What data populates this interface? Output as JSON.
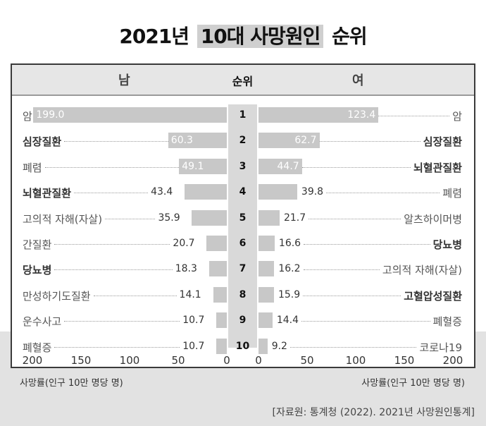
{
  "title": {
    "pre": "2021년",
    "highlight": "10대 사망원인",
    "post": "순위"
  },
  "header": {
    "male": "남",
    "rank": "순위",
    "female": "여"
  },
  "chart_data": {
    "type": "bar",
    "orientation": "horizontal-butterfly",
    "xlim": [
      0,
      200
    ],
    "ticks": [
      200,
      150,
      100,
      50,
      0
    ],
    "ticks_right": [
      0,
      50,
      100,
      150,
      200
    ],
    "axis_unit": "사망률(인구 10만 명당 명)",
    "ranks": [
      "1",
      "2",
      "3",
      "4",
      "5",
      "6",
      "7",
      "8",
      "9",
      "10"
    ],
    "male": [
      {
        "cause": "암",
        "value": 199.0,
        "value_label": "199.0",
        "bold": false
      },
      {
        "cause": "심장질환",
        "value": 60.3,
        "value_label": "60.3",
        "bold": true
      },
      {
        "cause": "폐렴",
        "value": 49.1,
        "value_label": "49.1",
        "bold": false
      },
      {
        "cause": "뇌혈관질환",
        "value": 43.4,
        "value_label": "43.4",
        "bold": true
      },
      {
        "cause": "고의적 자해(자살)",
        "value": 35.9,
        "value_label": "35.9",
        "bold": false
      },
      {
        "cause": "간질환",
        "value": 20.7,
        "value_label": "20.7",
        "bold": false
      },
      {
        "cause": "당뇨병",
        "value": 18.3,
        "value_label": "18.3",
        "bold": true
      },
      {
        "cause": "만성하기도질환",
        "value": 14.1,
        "value_label": "14.1",
        "bold": false
      },
      {
        "cause": "운수사고",
        "value": 10.7,
        "value_label": "10.7",
        "bold": false
      },
      {
        "cause": "폐혈증",
        "value": 10.7,
        "value_label": "10.7",
        "bold": false
      }
    ],
    "female": [
      {
        "cause": "암",
        "value": 123.4,
        "value_label": "123.4",
        "bold": false
      },
      {
        "cause": "심장질환",
        "value": 62.7,
        "value_label": "62.7",
        "bold": true
      },
      {
        "cause": "뇌혈관질환",
        "value": 44.7,
        "value_label": "44.7",
        "bold": true
      },
      {
        "cause": "폐렴",
        "value": 39.8,
        "value_label": "39.8",
        "bold": false
      },
      {
        "cause": "알츠하이머병",
        "value": 21.7,
        "value_label": "21.7",
        "bold": false
      },
      {
        "cause": "당뇨병",
        "value": 16.6,
        "value_label": "16.6",
        "bold": true
      },
      {
        "cause": "고의적 자해(자살)",
        "value": 16.2,
        "value_label": "16.2",
        "bold": false
      },
      {
        "cause": "고혈압성질환",
        "value": 15.9,
        "value_label": "15.9",
        "bold": true
      },
      {
        "cause": "폐혈증",
        "value": 14.4,
        "value_label": "14.4",
        "bold": false
      },
      {
        "cause": "코로나19",
        "value": 9.2,
        "value_label": "9.2",
        "bold": false
      }
    ]
  },
  "source": "[자료원: 통계청 (2022). 2021년 사망원인통계]",
  "colors": {
    "bar": "#c8c8c8",
    "rank_column": "#d9d9d9",
    "header": "#e6e6e6",
    "title_highlight": "#cfcfcf"
  }
}
